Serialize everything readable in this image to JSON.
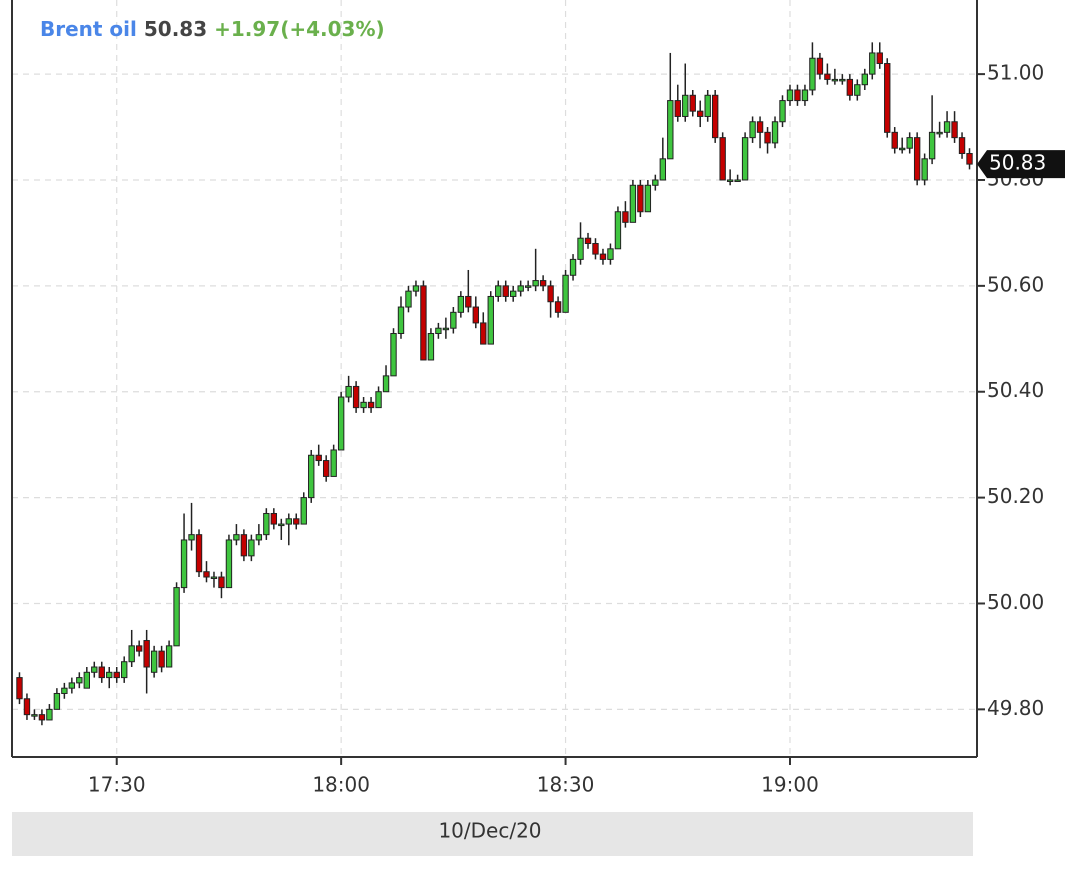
{
  "chart_data": {
    "type": "candlestick",
    "header": {
      "name": "Brent oil",
      "price": "50.83",
      "change": "+1.97(+4.03%)"
    },
    "date_label": "10/Dec/20",
    "up_color": "#3fc53f",
    "down_color": "#c40000",
    "grid": true,
    "y_axis_side": "right",
    "xlim": [
      "17:16",
      "19:25"
    ],
    "xticks": [
      "17:30",
      "18:00",
      "18:30",
      "19:00"
    ],
    "ylim": [
      49.71,
      51.14
    ],
    "yticks": [
      {
        "value": 49.8,
        "label": "49.80"
      },
      {
        "value": 50.0,
        "label": "50.00"
      },
      {
        "value": 50.2,
        "label": "50.20"
      },
      {
        "value": 50.4,
        "label": "50.40"
      },
      {
        "value": 50.6,
        "label": "50.60"
      },
      {
        "value": 50.8,
        "label": "50.80"
      },
      {
        "value": 51.0,
        "label": "51.00"
      }
    ],
    "x": [
      "17:17",
      "17:18",
      "17:19",
      "17:20",
      "17:21",
      "17:22",
      "17:23",
      "17:24",
      "17:25",
      "17:26",
      "17:27",
      "17:28",
      "17:29",
      "17:30",
      "17:31",
      "17:32",
      "17:33",
      "17:34",
      "17:35",
      "17:36",
      "17:37",
      "17:38",
      "17:39",
      "17:40",
      "17:41",
      "17:42",
      "17:43",
      "17:44",
      "17:45",
      "17:46",
      "17:47",
      "17:48",
      "17:49",
      "17:50",
      "17:51",
      "17:52",
      "17:53",
      "17:54",
      "17:55",
      "17:56",
      "17:57",
      "17:58",
      "17:59",
      "18:00",
      "18:01",
      "18:02",
      "18:03",
      "18:04",
      "18:05",
      "18:06",
      "18:07",
      "18:08",
      "18:09",
      "18:10",
      "18:11",
      "18:12",
      "18:13",
      "18:14",
      "18:15",
      "18:16",
      "18:17",
      "18:18",
      "18:19",
      "18:20",
      "18:21",
      "18:22",
      "18:23",
      "18:24",
      "18:25",
      "18:26",
      "18:27",
      "18:28",
      "18:29",
      "18:30",
      "18:31",
      "18:32",
      "18:33",
      "18:34",
      "18:35",
      "18:36",
      "18:37",
      "18:38",
      "18:39",
      "18:40",
      "18:41",
      "18:42",
      "18:43",
      "18:44",
      "18:45",
      "18:46",
      "18:47",
      "18:48",
      "18:49",
      "18:50",
      "18:51",
      "18:52",
      "18:53",
      "18:54",
      "18:55",
      "18:56",
      "18:57",
      "18:58",
      "18:59",
      "19:00",
      "19:01",
      "19:02",
      "19:03",
      "19:04",
      "19:05",
      "19:06",
      "19:07",
      "19:08",
      "19:09",
      "19:10",
      "19:11",
      "19:12",
      "19:13",
      "19:14",
      "19:15",
      "19:16",
      "19:17",
      "19:18",
      "19:19",
      "19:20",
      "19:21",
      "19:22",
      "19:23",
      "19:24"
    ],
    "candles": [
      [
        49.86,
        49.87,
        49.81,
        49.82
      ],
      [
        49.82,
        49.83,
        49.78,
        49.79
      ],
      [
        49.79,
        49.8,
        49.78,
        49.79
      ],
      [
        49.79,
        49.8,
        49.77,
        49.78
      ],
      [
        49.78,
        49.81,
        49.78,
        49.8
      ],
      [
        49.8,
        49.84,
        49.8,
        49.83
      ],
      [
        49.83,
        49.85,
        49.82,
        49.84
      ],
      [
        49.84,
        49.86,
        49.83,
        49.85
      ],
      [
        49.85,
        49.87,
        49.84,
        49.86
      ],
      [
        49.84,
        49.88,
        49.84,
        49.87
      ],
      [
        49.87,
        49.89,
        49.86,
        49.88
      ],
      [
        49.88,
        49.89,
        49.85,
        49.86
      ],
      [
        49.86,
        49.88,
        49.84,
        49.87
      ],
      [
        49.87,
        49.88,
        49.85,
        49.86
      ],
      [
        49.86,
        49.9,
        49.85,
        49.89
      ],
      [
        49.89,
        49.95,
        49.88,
        49.92
      ],
      [
        49.92,
        49.93,
        49.9,
        49.91
      ],
      [
        49.93,
        49.95,
        49.83,
        49.88
      ],
      [
        49.87,
        49.92,
        49.86,
        49.91
      ],
      [
        49.91,
        49.92,
        49.87,
        49.88
      ],
      [
        49.88,
        49.93,
        49.88,
        49.92
      ],
      [
        49.92,
        50.04,
        49.92,
        50.03
      ],
      [
        50.03,
        50.17,
        50.02,
        50.12
      ],
      [
        50.12,
        50.19,
        50.1,
        50.13
      ],
      [
        50.13,
        50.14,
        50.05,
        50.06
      ],
      [
        50.06,
        50.08,
        50.04,
        50.05
      ],
      [
        50.05,
        50.06,
        50.03,
        50.05
      ],
      [
        50.05,
        50.06,
        50.01,
        50.03
      ],
      [
        50.03,
        50.13,
        50.03,
        50.12
      ],
      [
        50.12,
        50.15,
        50.11,
        50.13
      ],
      [
        50.13,
        50.14,
        50.08,
        50.09
      ],
      [
        50.09,
        50.13,
        50.08,
        50.12
      ],
      [
        50.12,
        50.15,
        50.11,
        50.13
      ],
      [
        50.13,
        50.18,
        50.12,
        50.17
      ],
      [
        50.17,
        50.18,
        50.14,
        50.15
      ],
      [
        50.15,
        50.16,
        50.12,
        50.15
      ],
      [
        50.15,
        50.17,
        50.11,
        50.16
      ],
      [
        50.16,
        50.17,
        50.14,
        50.15
      ],
      [
        50.15,
        50.21,
        50.15,
        50.2
      ],
      [
        50.2,
        50.29,
        50.19,
        50.28
      ],
      [
        50.28,
        50.3,
        50.26,
        50.27
      ],
      [
        50.27,
        50.28,
        50.23,
        50.24
      ],
      [
        50.24,
        50.3,
        50.24,
        50.29
      ],
      [
        50.29,
        50.4,
        50.29,
        50.39
      ],
      [
        50.39,
        50.43,
        50.38,
        50.41
      ],
      [
        50.41,
        50.42,
        50.36,
        50.37
      ],
      [
        50.37,
        50.39,
        50.36,
        50.38
      ],
      [
        50.38,
        50.39,
        50.36,
        50.37
      ],
      [
        50.37,
        50.41,
        50.37,
        50.4
      ],
      [
        50.4,
        50.45,
        50.4,
        50.43
      ],
      [
        50.43,
        50.52,
        50.43,
        50.51
      ],
      [
        50.51,
        50.58,
        50.5,
        50.56
      ],
      [
        50.56,
        50.6,
        50.55,
        50.59
      ],
      [
        50.59,
        50.61,
        50.58,
        50.6
      ],
      [
        50.6,
        50.61,
        50.46,
        50.46
      ],
      [
        50.46,
        50.52,
        50.46,
        50.51
      ],
      [
        50.51,
        50.53,
        50.5,
        50.52
      ],
      [
        50.52,
        50.54,
        50.5,
        50.52
      ],
      [
        50.52,
        50.56,
        50.51,
        50.55
      ],
      [
        50.55,
        50.59,
        50.54,
        50.58
      ],
      [
        50.58,
        50.63,
        50.55,
        50.56
      ],
      [
        50.56,
        50.58,
        50.52,
        50.53
      ],
      [
        50.53,
        50.55,
        50.49,
        50.49
      ],
      [
        50.49,
        50.59,
        50.49,
        50.58
      ],
      [
        50.58,
        50.61,
        50.57,
        50.6
      ],
      [
        50.6,
        50.61,
        50.57,
        50.58
      ],
      [
        50.58,
        50.6,
        50.57,
        50.59
      ],
      [
        50.59,
        50.61,
        50.58,
        50.6
      ],
      [
        50.6,
        50.61,
        50.59,
        50.6
      ],
      [
        50.6,
        50.67,
        50.59,
        50.61
      ],
      [
        50.61,
        50.62,
        50.59,
        50.6
      ],
      [
        50.6,
        50.61,
        50.54,
        50.57
      ],
      [
        50.57,
        50.58,
        50.54,
        50.55
      ],
      [
        50.55,
        50.63,
        50.55,
        50.62
      ],
      [
        50.62,
        50.66,
        50.61,
        50.65
      ],
      [
        50.65,
        50.72,
        50.64,
        50.69
      ],
      [
        50.69,
        50.7,
        50.67,
        50.68
      ],
      [
        50.68,
        50.69,
        50.65,
        50.66
      ],
      [
        50.66,
        50.67,
        50.64,
        50.65
      ],
      [
        50.65,
        50.68,
        50.64,
        50.67
      ],
      [
        50.67,
        50.75,
        50.67,
        50.74
      ],
      [
        50.74,
        50.76,
        50.71,
        50.72
      ],
      [
        50.72,
        50.8,
        50.72,
        50.79
      ],
      [
        50.79,
        50.8,
        50.73,
        50.74
      ],
      [
        50.74,
        50.8,
        50.74,
        50.79
      ],
      [
        50.79,
        50.81,
        50.78,
        50.8
      ],
      [
        50.8,
        50.88,
        50.8,
        50.84
      ],
      [
        50.84,
        51.04,
        50.84,
        50.95
      ],
      [
        50.95,
        50.98,
        50.91,
        50.92
      ],
      [
        50.92,
        51.02,
        50.91,
        50.96
      ],
      [
        50.96,
        50.97,
        50.92,
        50.93
      ],
      [
        50.93,
        50.95,
        50.9,
        50.92
      ],
      [
        50.92,
        50.97,
        50.91,
        50.96
      ],
      [
        50.96,
        50.97,
        50.87,
        50.88
      ],
      [
        50.88,
        50.89,
        50.8,
        50.8
      ],
      [
        50.8,
        50.82,
        50.79,
        50.8
      ],
      [
        50.8,
        50.81,
        50.8,
        50.8
      ],
      [
        50.8,
        50.89,
        50.8,
        50.88
      ],
      [
        50.88,
        50.92,
        50.87,
        50.91
      ],
      [
        50.91,
        50.92,
        50.86,
        50.89
      ],
      [
        50.89,
        50.9,
        50.85,
        50.87
      ],
      [
        50.87,
        50.92,
        50.86,
        50.91
      ],
      [
        50.91,
        50.96,
        50.9,
        50.95
      ],
      [
        50.95,
        50.98,
        50.94,
        50.97
      ],
      [
        50.97,
        50.98,
        50.94,
        50.95
      ],
      [
        50.95,
        50.98,
        50.94,
        50.97
      ],
      [
        50.97,
        51.06,
        50.96,
        51.03
      ],
      [
        51.03,
        51.04,
        50.99,
        51.0
      ],
      [
        51.0,
        51.02,
        50.98,
        50.99
      ],
      [
        50.99,
        51.01,
        50.98,
        50.99
      ],
      [
        50.99,
        51.0,
        50.98,
        50.99
      ],
      [
        50.99,
        51.0,
        50.95,
        50.96
      ],
      [
        50.96,
        50.99,
        50.95,
        50.98
      ],
      [
        50.98,
        51.01,
        50.97,
        51.0
      ],
      [
        51.0,
        51.06,
        50.99,
        51.04
      ],
      [
        51.04,
        51.06,
        51.01,
        51.02
      ],
      [
        51.02,
        51.03,
        50.88,
        50.89
      ],
      [
        50.89,
        50.9,
        50.85,
        50.86
      ],
      [
        50.86,
        50.88,
        50.85,
        50.86
      ],
      [
        50.86,
        50.89,
        50.85,
        50.88
      ],
      [
        50.88,
        50.89,
        50.79,
        50.8
      ],
      [
        50.8,
        50.85,
        50.79,
        50.84
      ],
      [
        50.84,
        50.96,
        50.83,
        50.89
      ],
      [
        50.89,
        50.91,
        50.88,
        50.89
      ],
      [
        50.89,
        50.93,
        50.88,
        50.91
      ],
      [
        50.91,
        50.93,
        50.87,
        50.88
      ],
      [
        50.88,
        50.89,
        50.84,
        50.85
      ],
      [
        50.85,
        50.86,
        50.82,
        50.83
      ]
    ]
  }
}
